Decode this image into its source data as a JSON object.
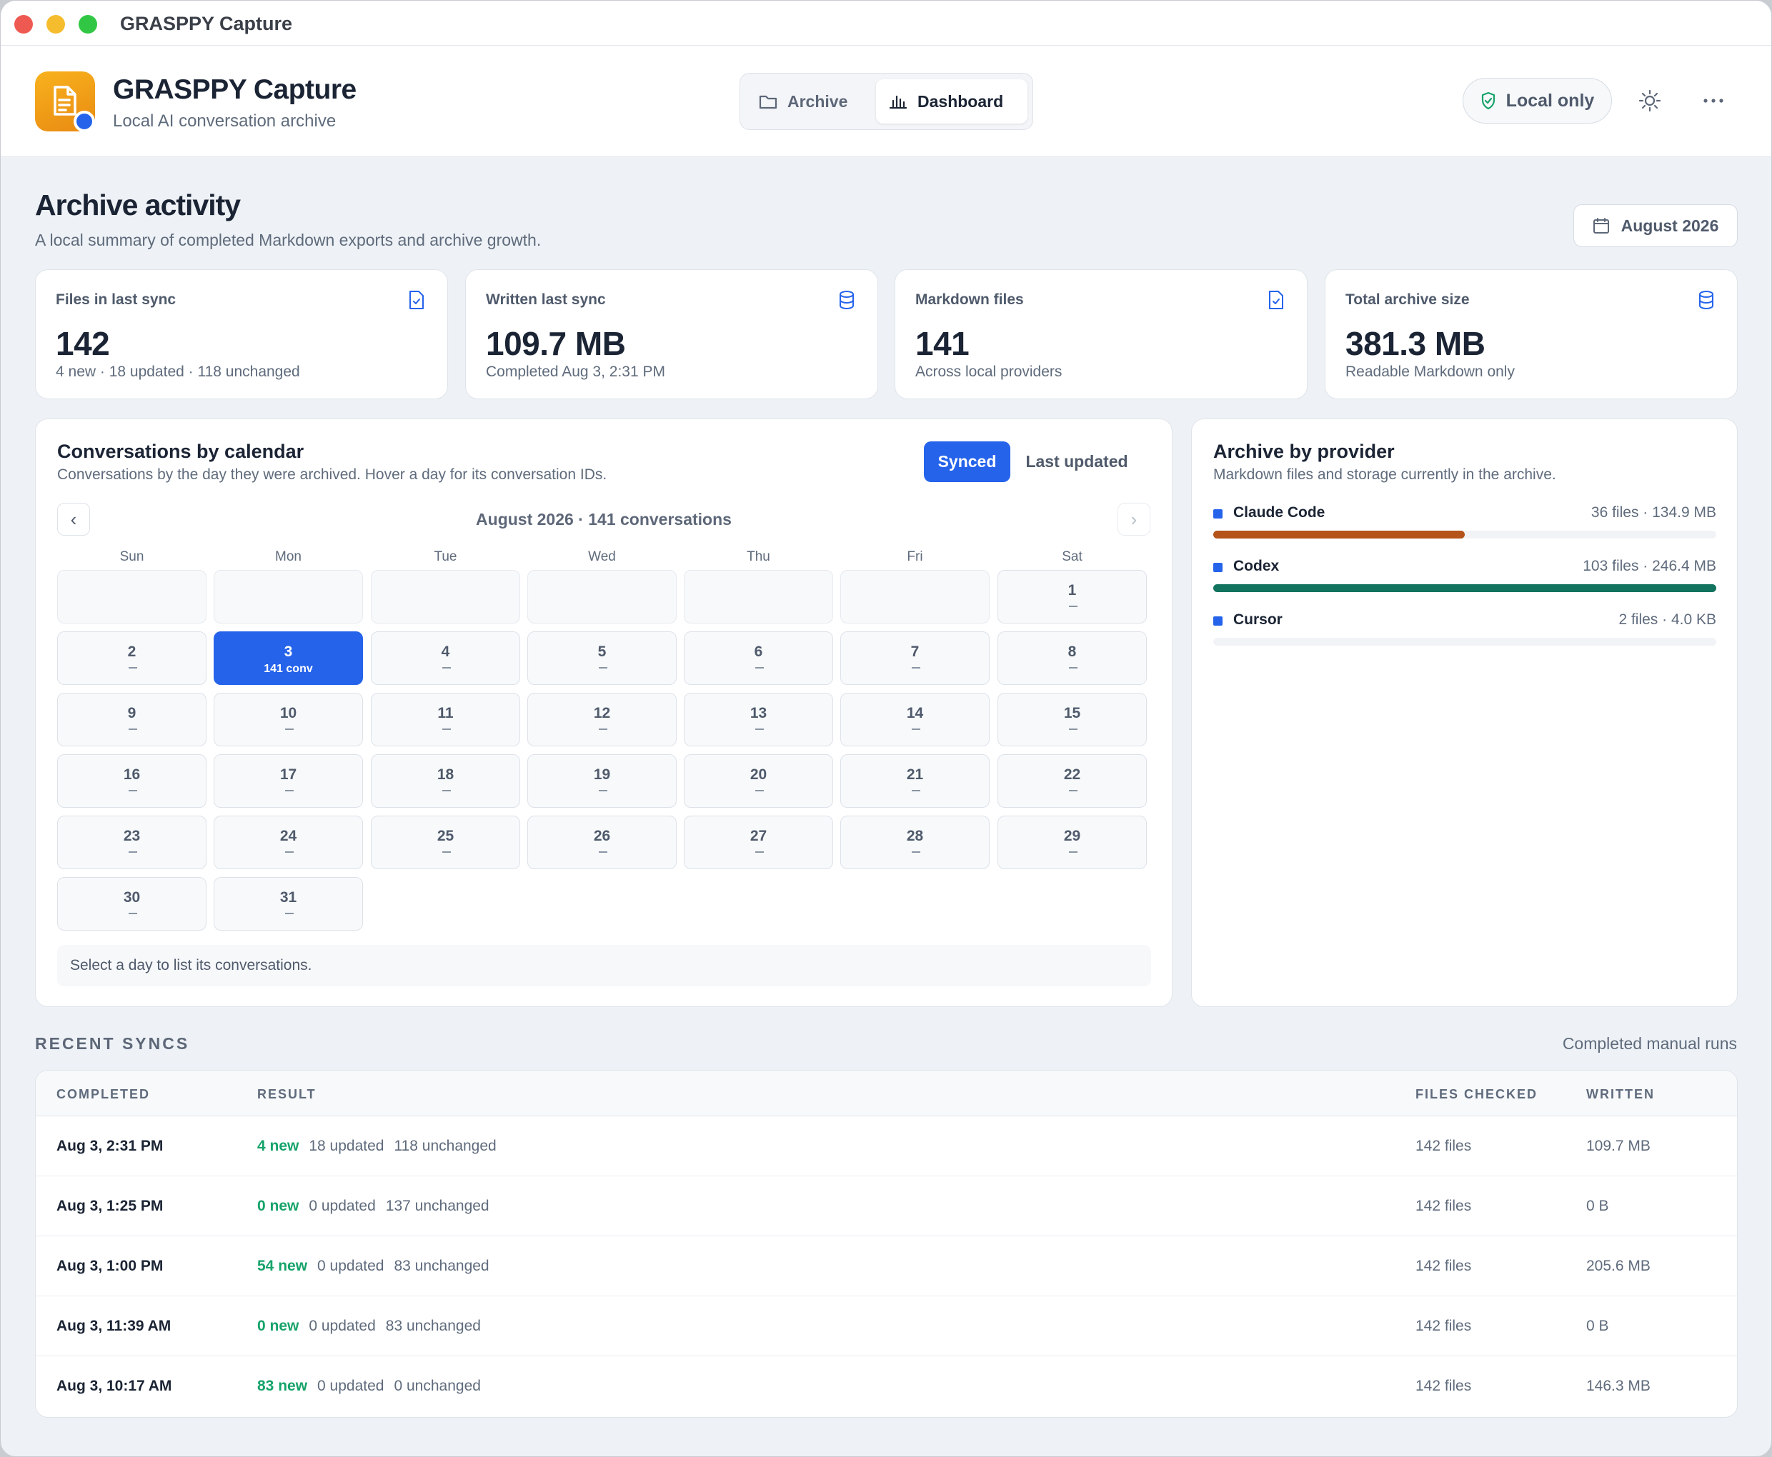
{
  "window": {
    "title": "GRASPPY Capture"
  },
  "header": {
    "app_name": "GRASPPY Capture",
    "app_subtitle": "Local AI conversation archive",
    "tabs": [
      {
        "label": "Archive",
        "icon": "folder-icon",
        "active": false
      },
      {
        "label": "Dashboard",
        "icon": "bar-chart-icon",
        "active": true
      }
    ],
    "privacy_badge": "Local only",
    "accent": "#2563eb"
  },
  "page": {
    "title": "Archive activity",
    "subtitle": "A local summary of completed Markdown exports and archive growth.",
    "month_button": "August 2026"
  },
  "stats": [
    {
      "label": "Files in last sync",
      "value": "142",
      "note": "4 new · 18 updated · 118 unchanged",
      "icon": "file-check-icon"
    },
    {
      "label": "Written last sync",
      "value": "109.7 MB",
      "note": "Completed Aug 3, 2:31 PM",
      "icon": "database-icon"
    },
    {
      "label": "Markdown files",
      "value": "141",
      "note": "Across local providers",
      "icon": "file-check-icon"
    },
    {
      "label": "Total archive size",
      "value": "381.3 MB",
      "note": "Readable Markdown only",
      "icon": "database-icon"
    }
  ],
  "calendar": {
    "title": "Conversations by calendar",
    "subtitle": "Conversations by the day they were archived. Hover a day for its conversation IDs.",
    "toggle": {
      "synced": "Synced",
      "last_updated": "Last updated",
      "active": "synced"
    },
    "month_label": "August 2026 · 141 conversations",
    "prev": "‹",
    "next": "›",
    "weekdays": [
      "Sun",
      "Mon",
      "Tue",
      "Wed",
      "Thu",
      "Fri",
      "Sat"
    ],
    "leading_blanks": 6,
    "days": [
      "1",
      "2",
      "3",
      "4",
      "5",
      "6",
      "7",
      "8",
      "9",
      "10",
      "11",
      "12",
      "13",
      "14",
      "15",
      "16",
      "17",
      "18",
      "19",
      "20",
      "21",
      "22",
      "23",
      "24",
      "25",
      "26",
      "27",
      "28",
      "29",
      "30",
      "31"
    ],
    "selected_day": "3",
    "selected_note": "141 conv",
    "footer": "Select a day to list its conversations."
  },
  "providers": {
    "title": "Archive by provider",
    "subtitle": "Markdown files and storage currently in the archive.",
    "items": [
      {
        "name": "Claude Code",
        "stats": "36 files · 134.9 MB",
        "share": 0.5,
        "color": "#b4531a"
      },
      {
        "name": "Codex",
        "stats": "103 files · 246.4 MB",
        "share": 1.0,
        "color": "#12735f"
      },
      {
        "name": "Cursor",
        "stats": "2 files · 4.0 KB",
        "share": 0.0,
        "color": "#2563eb"
      }
    ]
  },
  "recent_syncs": {
    "title": "RECENT SYNCS",
    "aside": "Completed manual runs",
    "columns": [
      "COMPLETED",
      "RESULT",
      "FILES CHECKED",
      "WRITTEN"
    ],
    "rows": [
      {
        "completed": "Aug 3, 2:31 PM",
        "new": "4 new",
        "updated": "18 updated",
        "unchanged": "118 unchanged",
        "files": "142 files",
        "written": "109.7 MB"
      },
      {
        "completed": "Aug 3, 1:25 PM",
        "new": "0 new",
        "updated": "0 updated",
        "unchanged": "137 unchanged",
        "files": "142 files",
        "written": "0 B"
      },
      {
        "completed": "Aug 3, 1:00 PM",
        "new": "54 new",
        "updated": "0 updated",
        "unchanged": "83 unchanged",
        "files": "142 files",
        "written": "205.6 MB"
      },
      {
        "completed": "Aug 3, 11:39 AM",
        "new": "0 new",
        "updated": "0 updated",
        "unchanged": "83 unchanged",
        "files": "142 files",
        "written": "0 B"
      },
      {
        "completed": "Aug 3, 10:17 AM",
        "new": "83 new",
        "updated": "0 updated",
        "unchanged": "0 unchanged",
        "files": "142 files",
        "written": "146.3 MB"
      }
    ]
  }
}
